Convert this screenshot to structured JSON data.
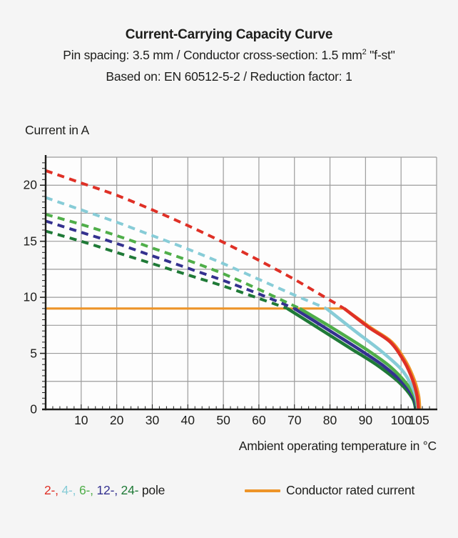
{
  "header": {
    "title": "Current-Carrying Capacity Curve",
    "subtitle1": {
      "pre": "Pin spacing: 3.5 mm / Conductor cross-section: 1.5 mm",
      "sup": "2",
      "post": " \"f-st\""
    },
    "subtitle2": "Based on: EN 60512-5-2 / Reduction factor: 1"
  },
  "chart_data": {
    "type": "line",
    "title": "Current-Carrying Capacity Curve",
    "xlabel": "Ambient operating temperature in °C",
    "ylabel": "Current in A",
    "xlim": [
      0,
      110
    ],
    "ylim": [
      0,
      22.5
    ],
    "x_ticks": [
      10,
      20,
      30,
      40,
      50,
      60,
      70,
      80,
      90,
      100,
      105
    ],
    "y_ticks": [
      0,
      5,
      10,
      15,
      20
    ],
    "grid": {
      "x_major_step": 10,
      "y_major_step": 2.5,
      "x_minor_tick_step": 2,
      "y_minor_tick_step": 0.5,
      "color": "#9c9c9c"
    },
    "rated_current": {
      "label": "Conductor rated current",
      "value": 9,
      "color": "#ed9428",
      "flat_points": [
        [
          0,
          9
        ],
        [
          84,
          9
        ]
      ],
      "drop_points": [
        [
          84,
          9
        ],
        [
          91.5,
          7.3
        ],
        [
          97.5,
          6.0
        ],
        [
          101.5,
          4.2
        ],
        [
          103.8,
          2.6
        ],
        [
          105.0,
          1.2
        ],
        [
          105.3,
          0
        ]
      ]
    },
    "series": [
      {
        "name": "24-pole",
        "color": "#1f7a37",
        "dashed_points": [
          [
            0,
            15.9
          ],
          [
            10,
            15.0
          ],
          [
            20,
            14.0
          ],
          [
            30,
            13.0
          ],
          [
            40,
            12.0
          ],
          [
            50,
            11.0
          ],
          [
            60,
            9.9
          ],
          [
            68,
            9.0
          ]
        ],
        "solid_points": [
          [
            68,
            9.0
          ],
          [
            77,
            7.2
          ],
          [
            86,
            5.4
          ],
          [
            93,
            4.0
          ],
          [
            99.5,
            2.4
          ],
          [
            103.2,
            1.0
          ],
          [
            104.1,
            0
          ]
        ]
      },
      {
        "name": "12-pole",
        "color": "#34318f",
        "dashed_points": [
          [
            0,
            16.8
          ],
          [
            10,
            15.8
          ],
          [
            20,
            14.8
          ],
          [
            30,
            13.7
          ],
          [
            40,
            12.6
          ],
          [
            50,
            11.5
          ],
          [
            60,
            10.3
          ],
          [
            70,
            9.0
          ]
        ],
        "solid_points": [
          [
            70,
            9.0
          ],
          [
            79,
            7.2
          ],
          [
            88,
            5.4
          ],
          [
            95,
            3.9
          ],
          [
            100.7,
            2.3
          ],
          [
            103.6,
            1.0
          ],
          [
            104.3,
            0
          ]
        ]
      },
      {
        "name": "6-pole",
        "color": "#4fae49",
        "dashed_points": [
          [
            0,
            17.4
          ],
          [
            10,
            16.5
          ],
          [
            20,
            15.5
          ],
          [
            30,
            14.4
          ],
          [
            40,
            13.3
          ],
          [
            50,
            12.1
          ],
          [
            60,
            10.7
          ],
          [
            71.5,
            9.0
          ]
        ],
        "solid_points": [
          [
            71.5,
            9.0
          ],
          [
            81,
            7.2
          ],
          [
            90,
            5.4
          ],
          [
            97,
            3.8
          ],
          [
            101.8,
            2.2
          ],
          [
            104.0,
            1.0
          ],
          [
            104.5,
            0
          ]
        ]
      },
      {
        "name": "4-pole",
        "color": "#87ccd7",
        "dashed_points": [
          [
            0,
            18.9
          ],
          [
            10,
            17.8
          ],
          [
            20,
            16.7
          ],
          [
            30,
            15.5
          ],
          [
            40,
            14.3
          ],
          [
            50,
            13.0
          ],
          [
            60,
            11.6
          ],
          [
            70,
            10.2
          ],
          [
            79,
            9.0
          ]
        ],
        "solid_points": [
          [
            79,
            9.0
          ],
          [
            87,
            7.0
          ],
          [
            94,
            5.3
          ],
          [
            100,
            3.6
          ],
          [
            103,
            2.1
          ],
          [
            104.4,
            0.9
          ],
          [
            104.7,
            0
          ]
        ]
      },
      {
        "name": "2-pole",
        "color": "#df3026",
        "dashed_points": [
          [
            0,
            21.3
          ],
          [
            10,
            20.2
          ],
          [
            20,
            19.1
          ],
          [
            30,
            17.8
          ],
          [
            40,
            16.4
          ],
          [
            50,
            14.9
          ],
          [
            60,
            13.3
          ],
          [
            70,
            11.6
          ],
          [
            77,
            10.3
          ],
          [
            84,
            9.0
          ]
        ],
        "solid_points": [
          [
            84,
            9.0
          ],
          [
            91,
            7.3
          ],
          [
            97,
            6.0
          ],
          [
            101,
            4.2
          ],
          [
            103.3,
            2.6
          ],
          [
            104.5,
            1.2
          ],
          [
            104.9,
            0
          ]
        ]
      }
    ]
  },
  "legend": {
    "poles": [
      {
        "label": "2-",
        "color": "#df3026"
      },
      {
        "label": "4-",
        "color": "#87ccd7"
      },
      {
        "label": "6-",
        "color": "#4fae49"
      },
      {
        "label": "12-",
        "color": "#34318f"
      },
      {
        "label": "24-",
        "color": "#1f7a37"
      }
    ],
    "separator": ", ",
    "pole_suffix": " pole",
    "rated_label": "Conductor rated current",
    "rated_color": "#ed9428"
  }
}
